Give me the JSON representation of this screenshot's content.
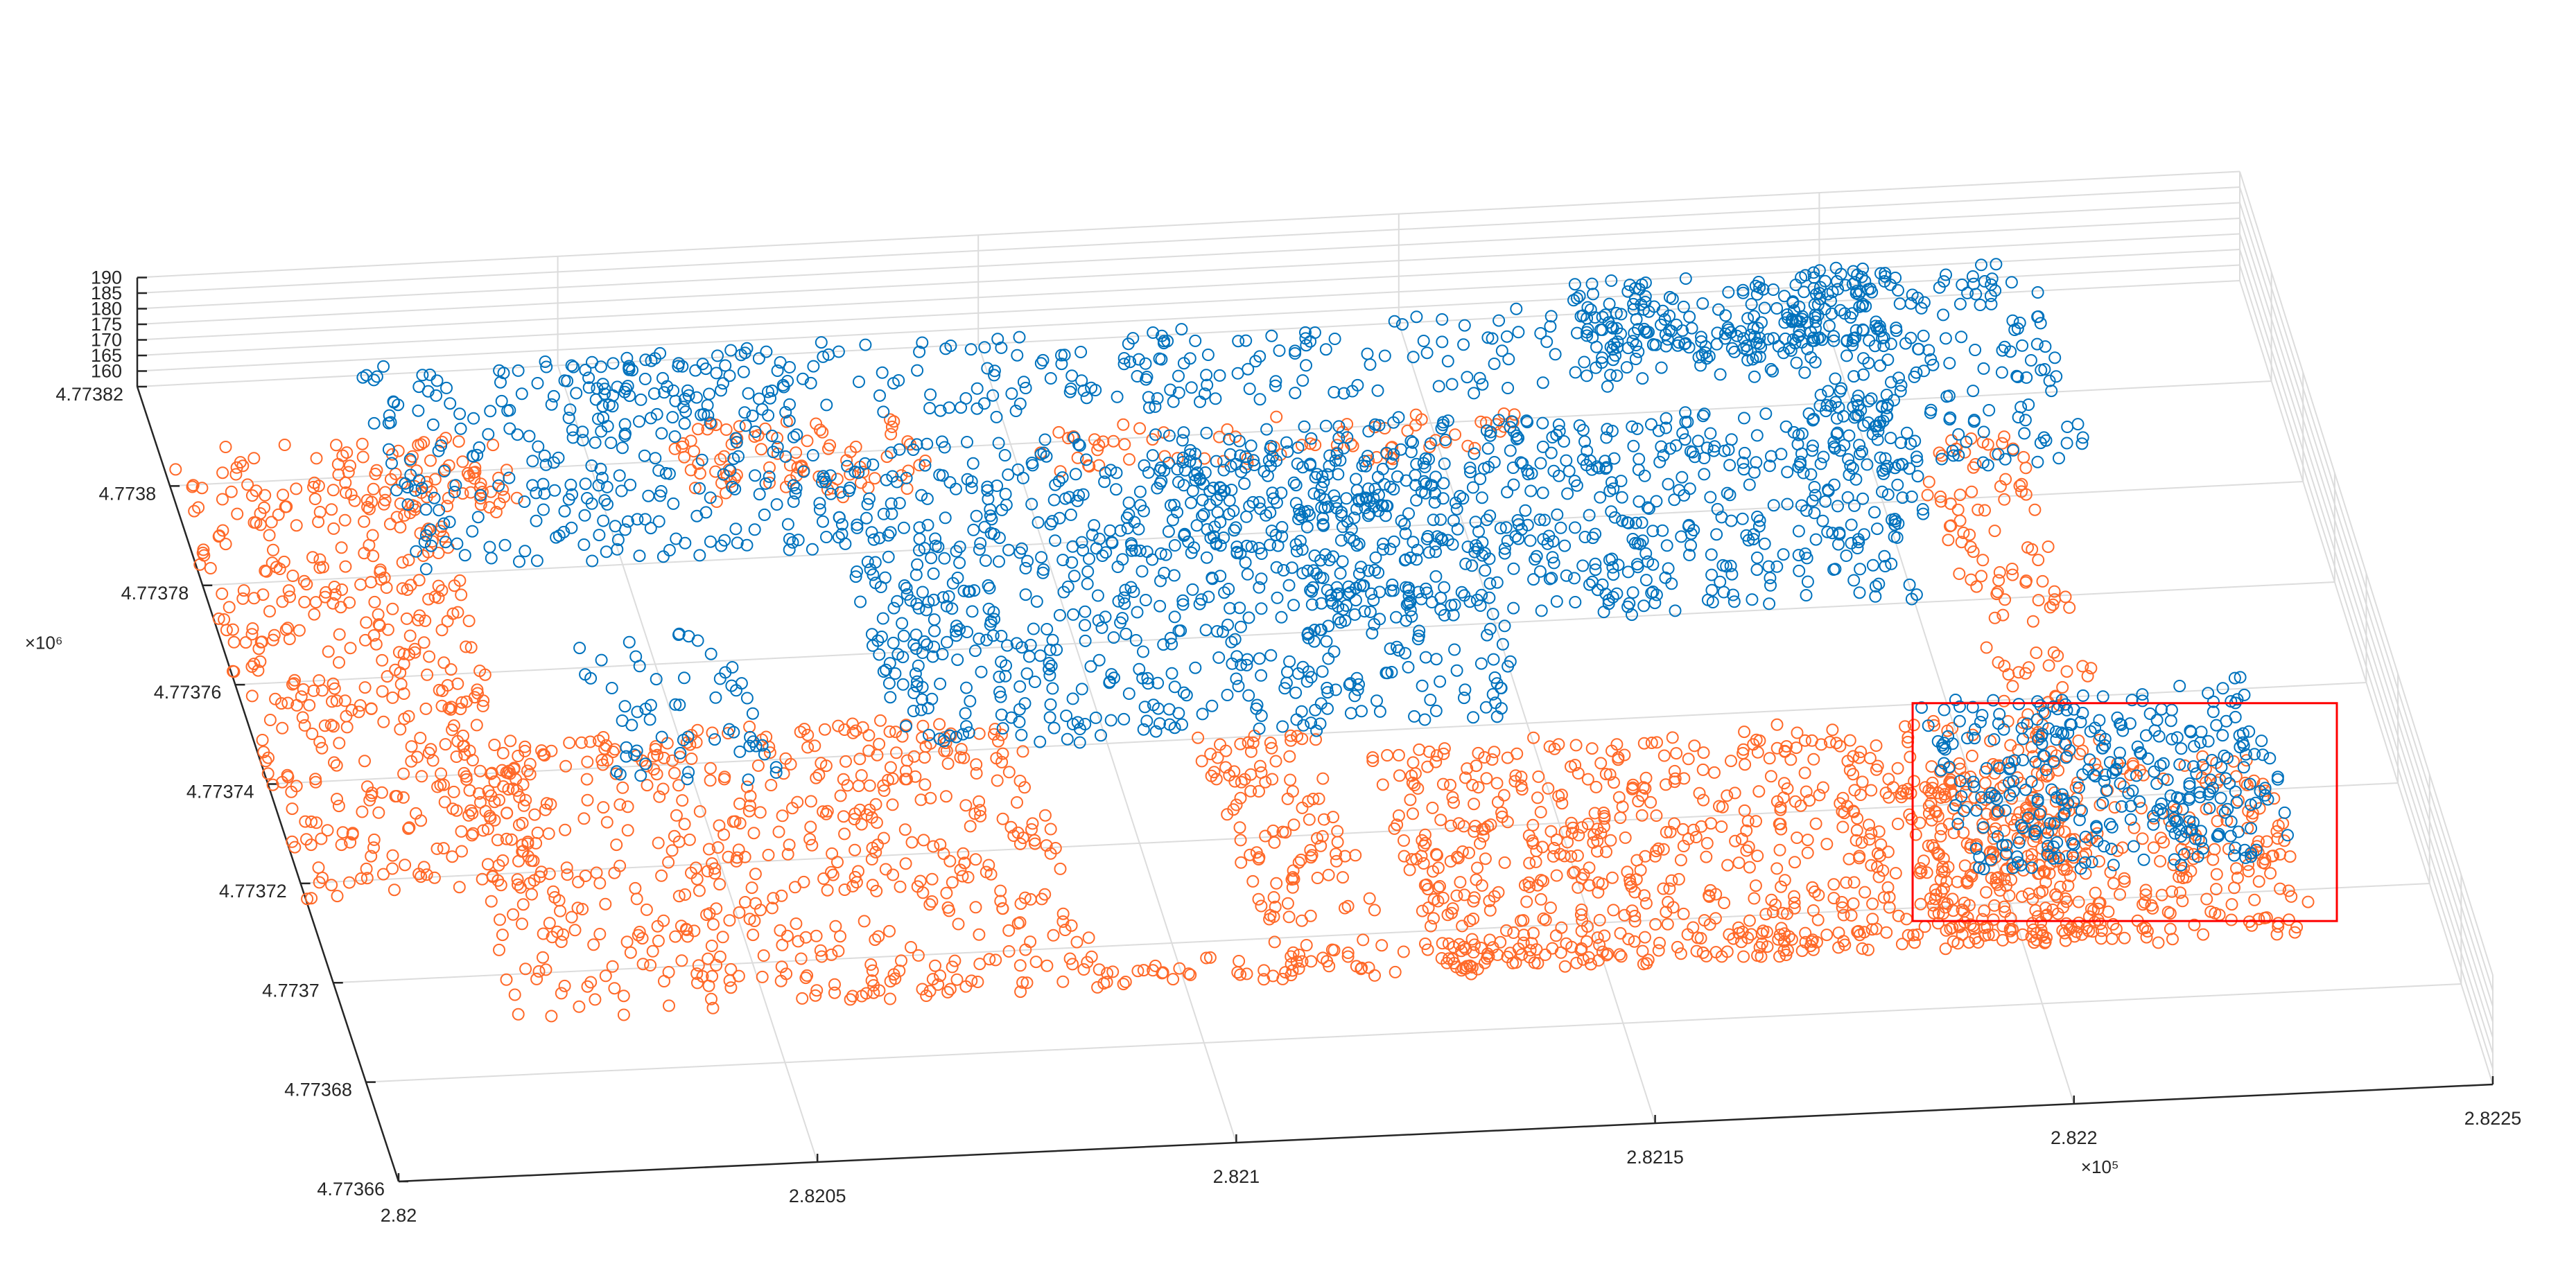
{
  "chart_data": {
    "type": "scatter",
    "title": "",
    "xlabel": "",
    "ylabel": "",
    "zlabel": "",
    "view": "3d",
    "grid": true,
    "axes": {
      "x": {
        "range": [
          282000,
          282250
        ],
        "ticks": [
          282000,
          282050,
          282100,
          282150,
          282200,
          282250
        ],
        "tick_labels": [
          "2.82",
          "2.8205",
          "2.821",
          "2.8215",
          "2.822",
          "2.8225"
        ],
        "exponent_label": "×10⁵"
      },
      "y": {
        "range": [
          4773660,
          4773820
        ],
        "ticks": [
          4773660,
          4773680,
          4773700,
          4773720,
          4773740,
          4773760,
          4773780,
          4773800,
          4773820
        ],
        "tick_labels": [
          "4.77366",
          "4.77368",
          "4.7737",
          "4.77372",
          "4.77374",
          "4.77376",
          "4.77378",
          "4.7738",
          "4.77382"
        ],
        "exponent_label": "×10⁶"
      },
      "z": {
        "range": [
          155,
          190
        ],
        "ticks": [
          160,
          165,
          170,
          175,
          180,
          185,
          190
        ],
        "tick_labels": [
          "160",
          "165",
          "170",
          "175",
          "180",
          "185",
          "190"
        ]
      }
    },
    "series": [
      {
        "color": "#ff6929",
        "marker": "circle-open",
        "z_level": 158,
        "regions": [
          {
            "x": [
              282000,
              282030
            ],
            "y": [
              4773715,
              4773805
            ]
          },
          {
            "x": [
              282020,
              282090
            ],
            "y": [
              4773690,
              4773745
            ]
          },
          {
            "x": [
              282020,
              282040
            ],
            "y": [
              4773790,
              4773805
            ]
          },
          {
            "x": [
              282060,
              282090
            ],
            "y": [
              4773790,
              4773805
            ]
          },
          {
            "x": [
              282100,
              282160
            ],
            "y": [
              4773792,
              4773800
            ]
          },
          {
            "x": [
              282130,
              282210
            ],
            "y": [
              4773690,
              4773735
            ]
          },
          {
            "x": [
              282190,
              282235
            ],
            "y": [
              4773690,
              4773725
            ]
          },
          {
            "x": [
              282088,
              282210
            ],
            "y": [
              4773690,
              4773695
            ]
          },
          {
            "x": [
              282110,
              282125
            ],
            "y": [
              4773695,
              4773740
            ]
          },
          {
            "x": [
              282205,
              282218
            ],
            "y": [
              4773725,
              4773790
            ]
          }
        ],
        "counts": [
          420,
          560,
          60,
          80,
          70,
          700,
          320,
          150,
          110,
          110
        ]
      },
      {
        "color": "#0072bd",
        "marker": "circle-open",
        "z_level": 165,
        "regions": [
          {
            "x": [
              282025,
              282075
            ],
            "y": [
              4773775,
              4773815
            ]
          },
          {
            "x": [
              282075,
              282110
            ],
            "y": [
              4773735,
              4773795
            ]
          },
          {
            "x": [
              282110,
              282150
            ],
            "y": [
              4773735,
              4773790
            ]
          },
          {
            "x": [
              282115,
              282205
            ],
            "y": [
              4773770,
              4773795
            ]
          },
          {
            "x": [
              282130,
              282200
            ],
            "y": [
              4773755,
              4773770
            ]
          },
          {
            "x": [
              282050,
              282200
            ],
            "y": [
              4773800,
              4773815
            ]
          },
          {
            "x": [
              282170,
              282205
            ],
            "y": [
              4773805,
              4773820
            ]
          },
          {
            "x": [
              282195,
              282225
            ],
            "y": [
              4773780,
              4773820
            ]
          },
          {
            "x": [
              282195,
              282235
            ],
            "y": [
              4773700,
              4773735
            ]
          },
          {
            "x": [
              282040,
              282060
            ],
            "y": [
              4773730,
              4773760
            ]
          }
        ],
        "counts": [
          260,
          380,
          330,
          430,
          200,
          300,
          160,
          200,
          330,
          60
        ]
      }
    ],
    "annotation": {
      "type": "rectangle",
      "color": "#ff0000",
      "x": [
        282195,
        282238
      ],
      "y": [
        4773695,
        4773735
      ],
      "z": 158
    }
  }
}
